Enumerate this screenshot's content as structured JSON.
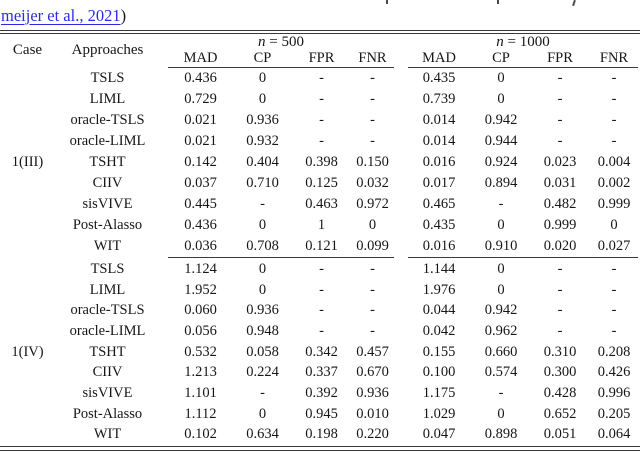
{
  "colors": {
    "link": "#2a2ae0",
    "text": "#161616",
    "rule": "#3a3a3a"
  },
  "citation": {
    "link_text": "meijer et al., 2021",
    "suffix": ")"
  },
  "table": {
    "col_headers": {
      "case": "Case",
      "approaches": "Approaches"
    },
    "groups": [
      {
        "label": "n = 500",
        "metrics": [
          "MAD",
          "CP",
          "FPR",
          "FNR"
        ]
      },
      {
        "label": "n = 1000",
        "metrics": [
          "MAD",
          "CP",
          "FPR",
          "FNR"
        ]
      }
    ],
    "blocks": [
      {
        "case": "1(III)",
        "case_row_index": 4,
        "rows": [
          {
            "approach": "TSLS",
            "n500": [
              "0.436",
              "0",
              "-",
              "-"
            ],
            "n1000": [
              "0.435",
              "0",
              "-",
              "-"
            ]
          },
          {
            "approach": "LIML",
            "n500": [
              "0.729",
              "0",
              "-",
              "-"
            ],
            "n1000": [
              "0.739",
              "0",
              "-",
              "-"
            ]
          },
          {
            "approach": "oracle-TSLS",
            "n500": [
              "0.021",
              "0.936",
              "-",
              "-"
            ],
            "n1000": [
              "0.014",
              "0.942",
              "-",
              "-"
            ]
          },
          {
            "approach": "oracle-LIML",
            "n500": [
              "0.021",
              "0.932",
              "-",
              "-"
            ],
            "n1000": [
              "0.014",
              "0.944",
              "-",
              "-"
            ]
          },
          {
            "approach": "TSHT",
            "n500": [
              "0.142",
              "0.404",
              "0.398",
              "0.150"
            ],
            "n1000": [
              "0.016",
              "0.924",
              "0.023",
              "0.004"
            ]
          },
          {
            "approach": "CIIV",
            "n500": [
              "0.037",
              "0.710",
              "0.125",
              "0.032"
            ],
            "n1000": [
              "0.017",
              "0.894",
              "0.031",
              "0.002"
            ]
          },
          {
            "approach": "sisVIVE",
            "n500": [
              "0.445",
              "-",
              "0.463",
              "0.972"
            ],
            "n1000": [
              "0.465",
              "-",
              "0.482",
              "0.999"
            ]
          },
          {
            "approach": "Post-Alasso",
            "n500": [
              "0.436",
              "0",
              "1",
              "0"
            ],
            "n1000": [
              "0.435",
              "0",
              "0.999",
              "0"
            ]
          },
          {
            "approach": "WIT",
            "n500": [
              "0.036",
              "0.708",
              "0.121",
              "0.099"
            ],
            "n1000": [
              "0.016",
              "0.910",
              "0.020",
              "0.027"
            ]
          }
        ]
      },
      {
        "case": "1(IV)",
        "case_row_index": 4,
        "rows": [
          {
            "approach": "TSLS",
            "n500": [
              "1.124",
              "0",
              "-",
              "-"
            ],
            "n1000": [
              "1.144",
              "0",
              "-",
              "-"
            ]
          },
          {
            "approach": "LIML",
            "n500": [
              "1.952",
              "0",
              "-",
              "-"
            ],
            "n1000": [
              "1.976",
              "0",
              "-",
              "-"
            ]
          },
          {
            "approach": "oracle-TSLS",
            "n500": [
              "0.060",
              "0.936",
              "-",
              "-"
            ],
            "n1000": [
              "0.044",
              "0.942",
              "-",
              "-"
            ]
          },
          {
            "approach": "oracle-LIML",
            "n500": [
              "0.056",
              "0.948",
              "-",
              "-"
            ],
            "n1000": [
              "0.042",
              "0.962",
              "-",
              "-"
            ]
          },
          {
            "approach": "TSHT",
            "n500": [
              "0.532",
              "0.058",
              "0.342",
              "0.457"
            ],
            "n1000": [
              "0.155",
              "0.660",
              "0.310",
              "0.208"
            ]
          },
          {
            "approach": "CIIV",
            "n500": [
              "1.213",
              "0.224",
              "0.337",
              "0.670"
            ],
            "n1000": [
              "0.100",
              "0.574",
              "0.300",
              "0.426"
            ]
          },
          {
            "approach": "sisVIVE",
            "n500": [
              "1.101",
              "-",
              "0.392",
              "0.936"
            ],
            "n1000": [
              "1.175",
              "-",
              "0.428",
              "0.996"
            ]
          },
          {
            "approach": "Post-Alasso",
            "n500": [
              "1.112",
              "0",
              "0.945",
              "0.010"
            ],
            "n1000": [
              "1.029",
              "0",
              "0.652",
              "0.205"
            ]
          },
          {
            "approach": "WIT",
            "n500": [
              "0.102",
              "0.634",
              "0.198",
              "0.220"
            ],
            "n1000": [
              "0.047",
              "0.898",
              "0.051",
              "0.064"
            ]
          }
        ]
      }
    ]
  }
}
